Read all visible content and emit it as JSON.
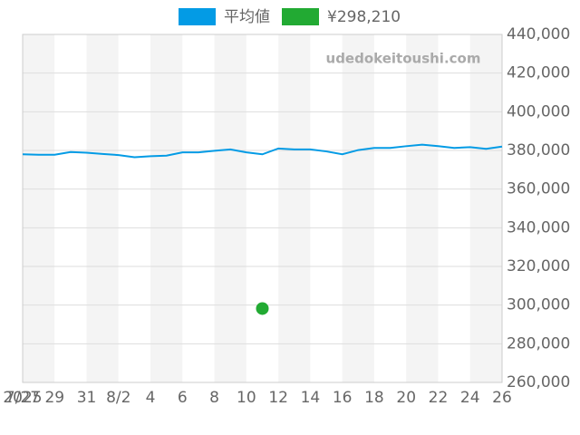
{
  "chart_data": {
    "type": "line",
    "categories": [
      "7/27",
      null,
      "29",
      null,
      "31",
      null,
      "8/2",
      null,
      "4",
      null,
      "6",
      null,
      "8",
      null,
      "10",
      null,
      "12",
      null,
      "14",
      null,
      "16",
      null,
      "18",
      null,
      "20",
      null,
      "22",
      null,
      "24",
      null,
      "26"
    ],
    "x_sublabel": "2025",
    "watermark": "udedokeitoushi.com",
    "series": [
      {
        "name": "平均値",
        "color": "#039be5",
        "values": [
          378000,
          377800,
          377800,
          379200,
          378800,
          378200,
          377600,
          376500,
          377000,
          377300,
          379000,
          379000,
          379800,
          380500,
          379000,
          378000,
          381000,
          380500,
          380500,
          379500,
          378000,
          380200,
          381300,
          381300,
          382200,
          383000,
          382200,
          381300,
          381700,
          380800,
          382000
        ]
      },
      {
        "name": "¥298,210",
        "color": "#22aa33",
        "values": [
          null,
          null,
          null,
          null,
          null,
          null,
          null,
          null,
          null,
          null,
          null,
          null,
          null,
          null,
          null,
          298210,
          null,
          null,
          null,
          null,
          null,
          null,
          null,
          null,
          null,
          null,
          null,
          null,
          null,
          null,
          null
        ]
      }
    ],
    "ylim": [
      260000,
      440000
    ],
    "yticks": [
      {
        "value": 260000,
        "label": "260,000"
      },
      {
        "value": 280000,
        "label": "280,000"
      },
      {
        "value": 300000,
        "label": "300,000"
      },
      {
        "value": 320000,
        "label": "320,000"
      },
      {
        "value": 340000,
        "label": "340,000"
      },
      {
        "value": 360000,
        "label": "360,000"
      },
      {
        "value": 380000,
        "label": "380,000"
      },
      {
        "value": 400000,
        "label": "400,000"
      },
      {
        "value": 420000,
        "label": "420,000"
      },
      {
        "value": 440000,
        "label": "440,000"
      }
    ],
    "grid": true
  }
}
